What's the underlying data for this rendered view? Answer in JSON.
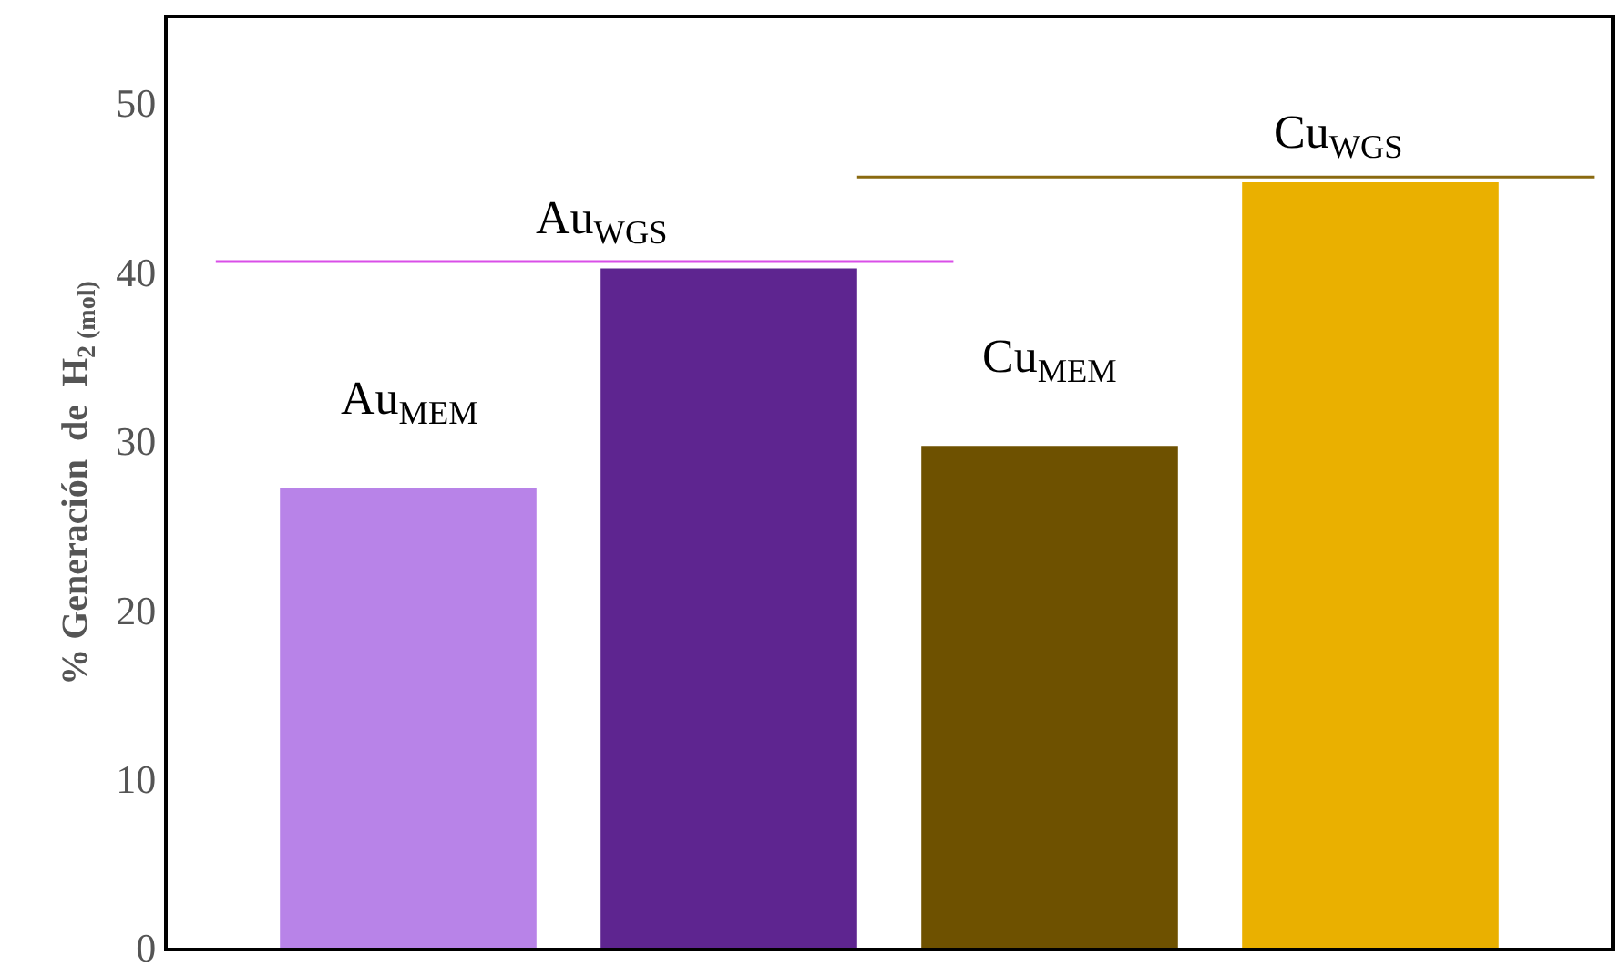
{
  "chart_data": {
    "type": "bar",
    "ylabel": "% Generación  de  H$_{2 (mol)}$",
    "categories": [
      null,
      null,
      null,
      null
    ],
    "series": [
      {
        "colors": [
          "#b883e8",
          "#5e2590",
          "#6e5100",
          "#eab000"
        ],
        "values": [
          27.2,
          40.2,
          29.7,
          45.3
        ]
      }
    ],
    "ref_lines": [
      {
        "axis": "y",
        "value": 40.6,
        "color": "#d94fe8"
      },
      {
        "axis": "y",
        "value": 45.6,
        "color": "#8a6a10"
      }
    ],
    "annotations": [
      "Au$_{MEM}$",
      "Au$_{WGS}$",
      "Cu$_{MEM}$",
      "Cu$_{WGS}$"
    ],
    "ylim": [
      0,
      55
    ],
    "yticks": [
      0,
      10,
      20,
      30,
      40,
      50
    ],
    "tick_labels": "y"
  }
}
